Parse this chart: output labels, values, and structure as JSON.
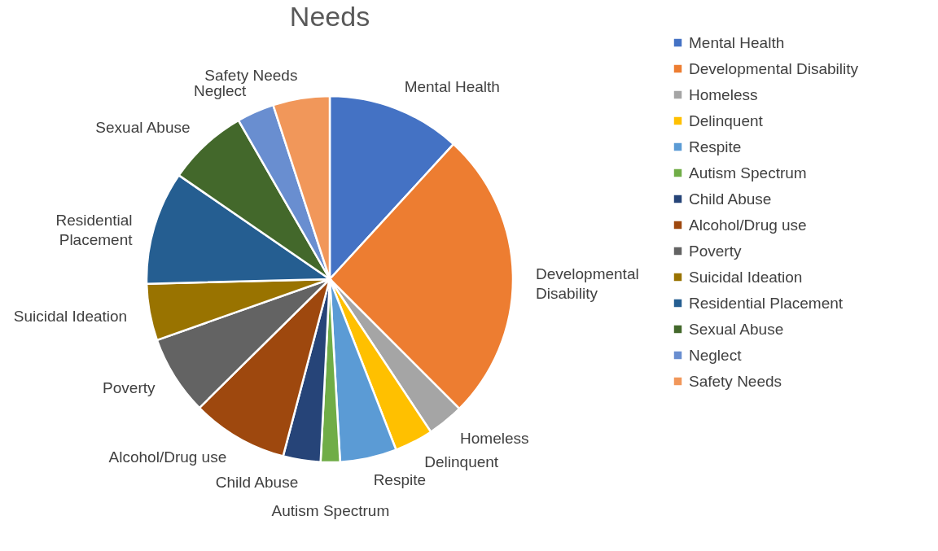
{
  "chart_data": {
    "type": "pie",
    "title": "Needs",
    "categories": [
      "Mental Health",
      "Developmental Disability",
      "Homeless",
      "Delinquent",
      "Respite",
      "Autism Spectrum",
      "Child Abuse",
      "Alcohol/Drug use",
      "Poverty",
      "Suicidal Ideation",
      "Residential Placement",
      "Sexual Abuse",
      "Neglect",
      "Safety Needs"
    ],
    "values": [
      11.8,
      25.7,
      3.2,
      3.4,
      5,
      1.7,
      3.3,
      8.5,
      7,
      5,
      10,
      7.1,
      3.3,
      5
    ],
    "colors": [
      "#4472c4",
      "#ed7d31",
      "#a5a5a5",
      "#ffc000",
      "#5b9bd5",
      "#70ad47",
      "#264478",
      "#9e480e",
      "#636363",
      "#997300",
      "#255e91",
      "#43682b",
      "#698ed0",
      "#f1975a"
    ],
    "legend": "right"
  }
}
